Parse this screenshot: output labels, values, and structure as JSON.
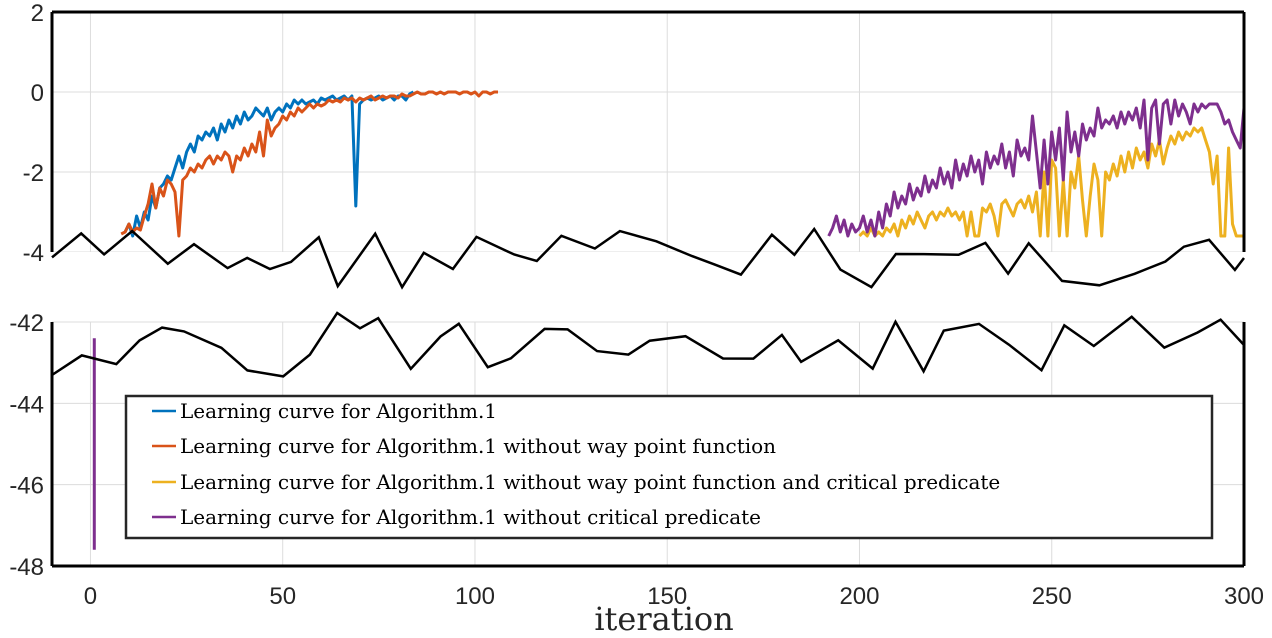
{
  "chart_data": {
    "type": "line",
    "title": "",
    "xlabel": "iteration",
    "ylabel": "",
    "xlim": [
      -10,
      300
    ],
    "xticks": [
      "0",
      "50",
      "100",
      "150",
      "200",
      "250",
      "300"
    ],
    "yticks_upper": [
      "2",
      "0",
      "-2",
      "-4"
    ],
    "yticks_lower": [
      "-42",
      "-44",
      "-46",
      "-48"
    ],
    "axis_break": {
      "upper_range": [
        -4,
        2
      ],
      "lower_range": [
        -48,
        -42
      ]
    },
    "grid": true,
    "legend_position": "bottom-center",
    "series": [
      {
        "name": "Learning curve for Algorithm.1",
        "color": "#0072BD",
        "x": [
          9,
          10,
          11,
          12,
          13,
          14,
          15,
          16,
          17,
          18,
          19,
          20,
          21,
          22,
          23,
          24,
          25,
          26,
          27,
          28,
          29,
          30,
          31,
          32,
          33,
          34,
          35,
          36,
          37,
          38,
          39,
          40,
          41,
          42,
          43,
          44,
          45,
          46,
          47,
          48,
          49,
          50,
          51,
          52,
          53,
          54,
          55,
          56,
          57,
          58,
          59,
          60,
          61,
          62,
          63,
          64,
          65,
          66,
          67,
          68,
          69,
          70,
          71,
          72,
          73,
          74,
          75,
          76,
          77,
          78,
          79,
          80,
          81,
          82,
          83,
          84
        ],
        "values": [
          -3.5,
          -3.3,
          -3.6,
          -3.1,
          -3.4,
          -3.0,
          -3.2,
          -2.6,
          -2.9,
          -2.4,
          -2.3,
          -2.1,
          -2.2,
          -1.9,
          -1.6,
          -1.9,
          -1.5,
          -1.3,
          -1.5,
          -1.1,
          -1.2,
          -1.0,
          -1.1,
          -0.9,
          -1.2,
          -0.8,
          -1.0,
          -0.7,
          -0.9,
          -0.6,
          -0.8,
          -0.5,
          -0.7,
          -0.6,
          -0.4,
          -0.5,
          -0.6,
          -0.4,
          -0.7,
          -0.5,
          -0.4,
          -0.5,
          -0.3,
          -0.4,
          -0.2,
          -0.3,
          -0.2,
          -0.3,
          -0.25,
          -0.2,
          -0.3,
          -0.15,
          -0.2,
          -0.15,
          -0.1,
          -0.2,
          -0.15,
          -0.1,
          -0.2,
          -0.1,
          -2.85,
          -0.3,
          -0.2,
          -0.15,
          -0.2,
          -0.15,
          -0.1,
          -0.2,
          -0.15,
          -0.1,
          -0.2,
          -0.1,
          -0.1,
          -0.2,
          -0.05,
          0.0
        ]
      },
      {
        "name": "Learning curve for Algorithm.1 without way point function",
        "color": "#D95319",
        "x": [
          8,
          9,
          10,
          11,
          12,
          13,
          14,
          15,
          16,
          17,
          18,
          19,
          20,
          21,
          22,
          23,
          24,
          25,
          26,
          27,
          28,
          29,
          30,
          31,
          32,
          33,
          34,
          35,
          36,
          37,
          38,
          39,
          40,
          41,
          42,
          43,
          44,
          45,
          46,
          47,
          48,
          49,
          50,
          51,
          52,
          53,
          54,
          55,
          56,
          57,
          58,
          59,
          60,
          61,
          62,
          63,
          64,
          65,
          66,
          67,
          68,
          69,
          70,
          71,
          72,
          73,
          74,
          75,
          76,
          77,
          78,
          79,
          80,
          81,
          82,
          83,
          84,
          85,
          86,
          87,
          88,
          89,
          90,
          91,
          92,
          93,
          94,
          95,
          96,
          97,
          98,
          99,
          100,
          101,
          102,
          103,
          104,
          105,
          106
        ],
        "values": [
          -3.55,
          -3.5,
          -3.3,
          -3.5,
          -3.4,
          -3.45,
          -3.1,
          -2.8,
          -2.3,
          -2.9,
          -2.4,
          -2.6,
          -2.2,
          -2.3,
          -2.5,
          -3.6,
          -2.2,
          -2.1,
          -1.9,
          -2.0,
          -1.8,
          -1.9,
          -1.7,
          -1.6,
          -1.8,
          -1.6,
          -1.7,
          -1.5,
          -1.6,
          -2.0,
          -1.6,
          -1.7,
          -1.4,
          -1.6,
          -1.3,
          -1.5,
          -1.0,
          -1.6,
          -0.7,
          -1.1,
          -0.9,
          -0.8,
          -0.6,
          -0.7,
          -0.5,
          -0.6,
          -0.4,
          -0.5,
          -0.4,
          -0.3,
          -0.4,
          -0.3,
          -0.35,
          -0.3,
          -0.2,
          -0.25,
          -0.2,
          -0.25,
          -0.15,
          -0.2,
          -0.15,
          -0.25,
          -0.15,
          -0.2,
          -0.15,
          -0.1,
          -0.2,
          -0.15,
          -0.1,
          -0.15,
          -0.1,
          -0.1,
          -0.15,
          -0.05,
          -0.1,
          -0.1,
          -0.05,
          0.0,
          -0.05,
          -0.05,
          0.0,
          0.0,
          -0.05,
          0.0,
          -0.05,
          0.0,
          0.0,
          0.0,
          -0.05,
          0.0,
          0.0,
          -0.05,
          0.0,
          -0.1,
          0.0,
          0.0,
          -0.05,
          0.0,
          0.0
        ]
      },
      {
        "name": "Learning curve for Algorithm.1 without way point function and critical predicate",
        "color": "#EDB120",
        "x": [
          200,
          201,
          202,
          203,
          204,
          205,
          206,
          207,
          208,
          209,
          210,
          211,
          212,
          213,
          214,
          215,
          216,
          217,
          218,
          219,
          220,
          221,
          222,
          223,
          224,
          225,
          226,
          227,
          228,
          229,
          230,
          231,
          232,
          233,
          234,
          235,
          236,
          237,
          238,
          239,
          240,
          241,
          242,
          243,
          244,
          245,
          246,
          247,
          248,
          249,
          250,
          251,
          252,
          253,
          254,
          255,
          256,
          257,
          258,
          259,
          260,
          261,
          262,
          263,
          264,
          265,
          266,
          267,
          268,
          269,
          270,
          271,
          272,
          273,
          274,
          275,
          276,
          277,
          278,
          279,
          280,
          281,
          282,
          283,
          284,
          285,
          286,
          287,
          288,
          289,
          290,
          291,
          292,
          293,
          294,
          295,
          296,
          297,
          298,
          299,
          300
        ],
        "values": [
          -3.6,
          -3.5,
          -3.6,
          -3.4,
          -3.6,
          -3.5,
          -3.6,
          -3.4,
          -3.5,
          -3.3,
          -3.6,
          -3.2,
          -3.4,
          -3.1,
          -3.3,
          -3.0,
          -3.2,
          -3.4,
          -3.1,
          -3.0,
          -3.2,
          -3.0,
          -3.1,
          -2.9,
          -3.1,
          -3.0,
          -3.2,
          -3.0,
          -3.6,
          -3.0,
          -3.6,
          -3.6,
          -2.9,
          -3.0,
          -2.8,
          -3.1,
          -3.6,
          -2.8,
          -2.7,
          -2.9,
          -3.1,
          -2.8,
          -2.7,
          -2.9,
          -2.6,
          -3.0,
          -2.5,
          -3.6,
          -2.0,
          -3.6,
          -1.7,
          -1.9,
          -3.6,
          -2.2,
          -3.6,
          -2.0,
          -2.4,
          -1.6,
          -2.7,
          -3.6,
          -2.6,
          -1.8,
          -2.2,
          -3.6,
          -2.0,
          -2.2,
          -1.8,
          -2.1,
          -1.6,
          -2.0,
          -1.5,
          -1.9,
          -1.4,
          -1.7,
          -1.5,
          -1.9,
          -1.3,
          -1.6,
          -1.2,
          -1.8,
          -1.4,
          -1.1,
          -1.3,
          -1.0,
          -1.2,
          -1.0,
          -1.1,
          -0.9,
          -1.0,
          -0.9,
          -1.2,
          -1.5,
          -2.3,
          -1.6,
          -3.6,
          -3.6,
          -1.4,
          -3.3,
          -3.6,
          -3.6,
          -3.6
        ]
      },
      {
        "name": "Learning curve for Algorithm.1 without critical predicate",
        "color": "#7E2F8E",
        "x": [
          192,
          193,
          194,
          195,
          196,
          197,
          198,
          199,
          200,
          201,
          202,
          203,
          204,
          205,
          206,
          207,
          208,
          209,
          210,
          211,
          212,
          213,
          214,
          215,
          216,
          217,
          218,
          219,
          220,
          221,
          222,
          223,
          224,
          225,
          226,
          227,
          228,
          229,
          230,
          231,
          232,
          233,
          234,
          235,
          236,
          237,
          238,
          239,
          240,
          241,
          242,
          243,
          244,
          245,
          246,
          247,
          248,
          249,
          250,
          251,
          252,
          253,
          254,
          255,
          256,
          257,
          258,
          259,
          260,
          261,
          262,
          263,
          264,
          265,
          266,
          267,
          268,
          269,
          270,
          271,
          272,
          273,
          274,
          275,
          276,
          277,
          278,
          279,
          280,
          281,
          282,
          283,
          284,
          285,
          286,
          287,
          288,
          289,
          290,
          291,
          292,
          293,
          294,
          295,
          296,
          297,
          298,
          299,
          300
        ],
        "values": [
          -3.6,
          -3.4,
          -3.1,
          -3.5,
          -3.2,
          -3.6,
          -3.3,
          -3.5,
          -3.4,
          -3.1,
          -3.5,
          -3.2,
          -3.6,
          -3.0,
          -3.4,
          -2.8,
          -3.1,
          -2.5,
          -2.9,
          -2.6,
          -2.8,
          -2.3,
          -2.7,
          -2.4,
          -2.6,
          -2.1,
          -2.5,
          -2.2,
          -2.4,
          -1.9,
          -2.3,
          -2.0,
          -2.4,
          -1.7,
          -2.2,
          -1.8,
          -2.1,
          -1.6,
          -2.0,
          -1.7,
          -2.3,
          -1.5,
          -1.9,
          -1.6,
          -1.8,
          -1.3,
          -1.9,
          -1.5,
          -2.1,
          -1.2,
          -1.6,
          -1.4,
          -1.7,
          -0.6,
          -1.5,
          -2.4,
          -1.2,
          -2.3,
          -1.0,
          -1.7,
          -0.9,
          -2.2,
          -0.5,
          -1.5,
          -1.0,
          -1.6,
          -0.8,
          -1.2,
          -0.9,
          -1.1,
          -0.4,
          -0.9,
          -0.7,
          -0.8,
          -0.6,
          -0.9,
          -0.5,
          -0.8,
          -0.5,
          -0.7,
          -0.4,
          -0.9,
          -0.2,
          -1.7,
          -0.4,
          -0.2,
          -1.3,
          -0.3,
          -0.2,
          -0.8,
          -0.2,
          -0.6,
          -0.3,
          -0.5,
          -0.8,
          -0.3,
          -0.5,
          -0.3,
          -0.4,
          -0.3,
          -0.3,
          -0.3,
          -0.5,
          -0.8,
          -0.7,
          -1.0,
          -1.2,
          -1.4,
          -0.4
        ],
        "outlier": {
          "x": 1,
          "range": [
            -42.4,
            -47.6
          ]
        }
      }
    ]
  }
}
